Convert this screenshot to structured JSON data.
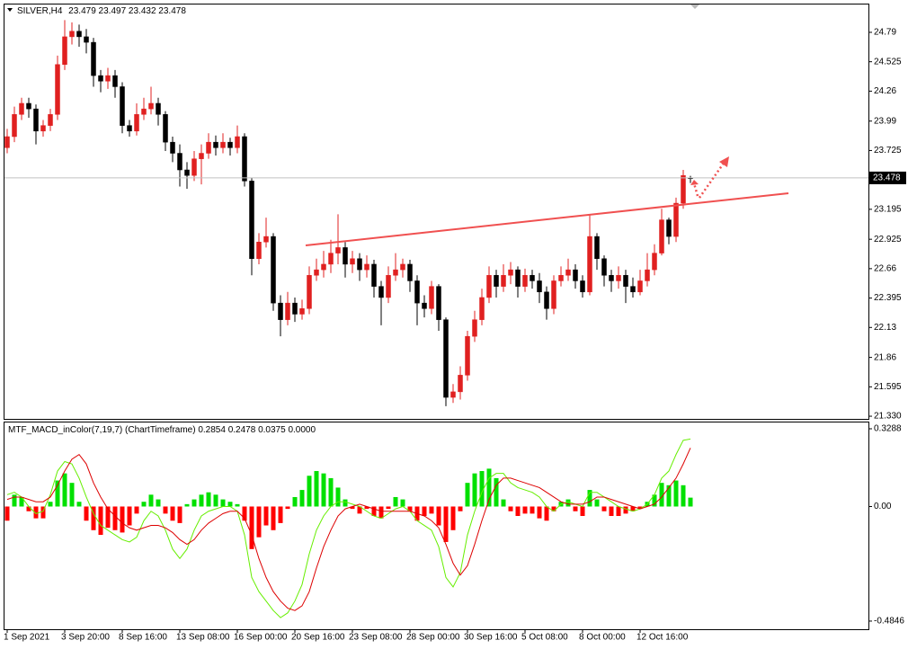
{
  "chart_data": [
    {
      "type": "candlestick",
      "title": "SILVER,H4",
      "categories": [
        "1 Sep 2021",
        null,
        null,
        null,
        null,
        null,
        null,
        null,
        "3 Sep 20:00",
        null,
        null,
        null,
        null,
        null,
        null,
        null,
        "8 Sep 16:00",
        null,
        null,
        null,
        null,
        null,
        null,
        null,
        "13 Sep 08:00",
        null,
        null,
        null,
        null,
        null,
        null,
        null,
        "16 Sep 00:00",
        null,
        null,
        null,
        null,
        null,
        null,
        null,
        "20 Sep 16:00",
        null,
        null,
        null,
        null,
        null,
        null,
        null,
        "23 Sep 08:00",
        null,
        null,
        null,
        null,
        null,
        null,
        null,
        "28 Sep 00:00",
        null,
        null,
        null,
        null,
        null,
        null,
        null,
        "30 Sep 16:00",
        null,
        null,
        null,
        null,
        null,
        null,
        null,
        "5 Oct 08:00",
        null,
        null,
        null,
        null,
        null,
        null,
        null,
        "8 Oct 00:00",
        null,
        null,
        null,
        null,
        null,
        null,
        null,
        "12 Oct 16:00",
        null,
        null,
        null,
        null,
        null,
        null,
        null
      ],
      "open": [
        23.75,
        23.85,
        24.05,
        24.15,
        24.1,
        23.9,
        23.95,
        24.05,
        24.5,
        24.75,
        24.8,
        24.75,
        24.7,
        24.4,
        24.35,
        24.4,
        24.3,
        23.95,
        23.9,
        24.05,
        24.1,
        24.15,
        24.05,
        23.8,
        23.7,
        23.55,
        23.5,
        23.65,
        23.7,
        23.8,
        23.75,
        23.8,
        23.75,
        23.85,
        23.45,
        22.75,
        22.9,
        22.95,
        22.35,
        22.2,
        22.35,
        22.25,
        22.3,
        22.6,
        22.65,
        22.7,
        22.8,
        22.85,
        22.7,
        22.75,
        22.65,
        22.7,
        22.5,
        22.4,
        22.6,
        22.65,
        22.7,
        22.55,
        22.35,
        22.3,
        22.5,
        22.2,
        21.5,
        21.55,
        21.7,
        22.05,
        22.2,
        22.4,
        22.6,
        22.5,
        22.6,
        22.65,
        22.5,
        22.6,
        22.55,
        22.45,
        22.3,
        22.55,
        22.6,
        22.65,
        22.55,
        22.45,
        22.95,
        22.75,
        22.6,
        22.55,
        22.6,
        22.5,
        22.45,
        22.55,
        22.65,
        22.8,
        23.1,
        22.95,
        23.25,
        23.479
      ],
      "high": [
        23.92,
        24.12,
        24.2,
        24.2,
        24.14,
        24.0,
        24.1,
        24.58,
        24.9,
        24.88,
        24.86,
        24.82,
        24.74,
        24.45,
        24.47,
        24.45,
        24.34,
        24.0,
        24.15,
        24.2,
        24.3,
        24.2,
        24.08,
        23.85,
        23.78,
        23.62,
        23.72,
        23.78,
        23.88,
        23.86,
        23.88,
        23.84,
        23.95,
        23.88,
        23.48,
        22.98,
        23.12,
        22.98,
        22.42,
        22.45,
        22.4,
        22.38,
        22.68,
        22.75,
        22.82,
        22.92,
        23.15,
        22.9,
        22.82,
        22.8,
        22.78,
        22.74,
        22.55,
        22.68,
        22.8,
        22.75,
        22.74,
        22.6,
        22.42,
        22.55,
        22.52,
        22.22,
        21.62,
        21.78,
        22.1,
        22.28,
        22.48,
        22.68,
        22.65,
        22.7,
        22.72,
        22.68,
        22.66,
        22.65,
        22.62,
        22.5,
        22.6,
        22.68,
        22.75,
        22.7,
        22.6,
        23.15,
        22.98,
        22.78,
        22.65,
        22.68,
        22.65,
        22.58,
        22.65,
        22.8,
        22.88,
        23.2,
        23.12,
        23.3,
        23.55,
        23.497
      ],
      "low": [
        23.7,
        23.8,
        24.0,
        24.02,
        23.78,
        23.85,
        23.9,
        24.0,
        24.45,
        24.68,
        24.66,
        24.6,
        24.3,
        24.25,
        24.28,
        24.2,
        23.88,
        23.85,
        23.86,
        24.0,
        24.05,
        23.95,
        23.72,
        23.62,
        23.4,
        23.38,
        23.45,
        23.42,
        23.65,
        23.68,
        23.7,
        23.68,
        23.7,
        23.4,
        22.6,
        22.7,
        22.85,
        22.28,
        22.05,
        22.15,
        22.18,
        22.2,
        22.25,
        22.55,
        22.58,
        22.62,
        22.7,
        22.58,
        22.62,
        22.55,
        22.58,
        22.4,
        22.15,
        22.35,
        22.55,
        22.58,
        22.45,
        22.15,
        22.22,
        22.25,
        22.1,
        21.42,
        21.45,
        21.48,
        21.65,
        22.0,
        22.15,
        22.35,
        22.4,
        22.45,
        22.52,
        22.4,
        22.45,
        22.48,
        22.35,
        22.2,
        22.25,
        22.5,
        22.55,
        22.48,
        22.4,
        22.42,
        22.65,
        22.5,
        22.45,
        22.48,
        22.35,
        22.4,
        22.42,
        22.5,
        22.6,
        22.78,
        22.88,
        22.9,
        23.2,
        23.432
      ],
      "close": [
        23.85,
        24.05,
        24.15,
        24.1,
        23.9,
        23.95,
        24.05,
        24.5,
        24.75,
        24.8,
        24.75,
        24.7,
        24.4,
        24.35,
        24.4,
        24.3,
        23.95,
        23.9,
        24.05,
        24.1,
        24.15,
        24.05,
        23.8,
        23.7,
        23.55,
        23.5,
        23.65,
        23.7,
        23.8,
        23.75,
        23.8,
        23.75,
        23.85,
        23.45,
        22.75,
        22.9,
        22.95,
        22.35,
        22.2,
        22.35,
        22.25,
        22.3,
        22.6,
        22.65,
        22.7,
        22.8,
        22.85,
        22.7,
        22.75,
        22.65,
        22.7,
        22.5,
        22.4,
        22.6,
        22.65,
        22.7,
        22.55,
        22.35,
        22.3,
        22.5,
        22.2,
        21.5,
        21.55,
        21.7,
        22.05,
        22.2,
        22.4,
        22.6,
        22.5,
        22.6,
        22.65,
        22.5,
        22.6,
        22.55,
        22.45,
        22.3,
        22.55,
        22.6,
        22.65,
        22.55,
        22.45,
        22.95,
        22.75,
        22.6,
        22.55,
        22.6,
        22.5,
        22.45,
        22.55,
        22.65,
        22.8,
        23.1,
        22.95,
        23.25,
        23.5,
        23.478
      ],
      "up_color": "#e02020",
      "down_color": "#000000",
      "ylim": [
        21.306,
        25.049
      ],
      "yticks": [
        {
          "value": 21.33,
          "label": "21.330"
        },
        21.595,
        21.86,
        22.13,
        22.395,
        22.66,
        22.925,
        23.195,
        23.725,
        23.99,
        24.26,
        24.525,
        24.79
      ]
    },
    {
      "type": "macd",
      "title": "MTF_MACD_inColor(7,19,7) (ChartTimeframe)",
      "readout": [
        "0.2854",
        "0.2478",
        "0.0375",
        "0.0000"
      ],
      "histogram": [
        -0.06,
        0.05,
        0.04,
        -0.02,
        -0.05,
        -0.05,
        0.02,
        0.11,
        0.14,
        0.1,
        0.02,
        -0.06,
        -0.1,
        -0.12,
        -0.09,
        -0.1,
        -0.11,
        -0.08,
        -0.03,
        0.02,
        0.05,
        0.03,
        -0.03,
        -0.06,
        -0.07,
        0.01,
        0.03,
        0.05,
        0.06,
        0.05,
        0.03,
        0.02,
        0.01,
        -0.06,
        -0.18,
        -0.13,
        -0.08,
        -0.1,
        -0.07,
        -0.01,
        0.04,
        0.07,
        0.13,
        0.15,
        0.14,
        0.12,
        0.08,
        0.03,
        -0.01,
        -0.03,
        -0.01,
        -0.04,
        -0.05,
        -0.01,
        0.04,
        0.03,
        -0.02,
        -0.06,
        -0.04,
        -0.03,
        -0.08,
        -0.15,
        -0.1,
        -0.02,
        0.1,
        0.14,
        0.15,
        0.16,
        0.12,
        0.03,
        -0.02,
        -0.04,
        -0.03,
        -0.03,
        -0.05,
        -0.06,
        -0.02,
        0.02,
        0.03,
        -0.02,
        -0.04,
        0.07,
        0.03,
        -0.02,
        -0.04,
        -0.04,
        -0.03,
        -0.02,
        -0.01,
        0.02,
        0.05,
        0.1,
        0.09,
        0.11,
        0.09,
        0.0375
      ],
      "up_color": "#00e000",
      "down_color": "#ff0000",
      "series": [
        {
          "color": "#66ee00",
          "values": [
            0.05,
            0.06,
            0.04,
            0,
            -0.03,
            -0.02,
            0.05,
            0.15,
            0.19,
            0.18,
            0.12,
            0.04,
            -0.03,
            -0.08,
            -0.1,
            -0.12,
            -0.14,
            -0.15,
            -0.13,
            -0.06,
            -0.02,
            -0.04,
            -0.1,
            -0.18,
            -0.22,
            -0.18,
            -0.1,
            -0.04,
            -0.02,
            -0.01,
            0,
            0,
            -0.02,
            -0.12,
            -0.3,
            -0.36,
            -0.4,
            -0.44,
            -0.47,
            -0.45,
            -0.4,
            -0.33,
            -0.2,
            -0.1,
            -0.04,
            0,
            0.02,
            0.02,
            0.01,
            0,
            -0.02,
            -0.04,
            -0.05,
            -0.03,
            -0.01,
            0,
            -0.02,
            -0.06,
            -0.08,
            -0.1,
            -0.17,
            -0.3,
            -0.34,
            -0.28,
            -0.12,
            -0.02,
            0.06,
            0.12,
            0.14,
            0.14,
            0.1,
            0.08,
            0.07,
            0.06,
            0.04,
            0,
            -0.02,
            0.01,
            0.02,
            0.01,
            0,
            0.06,
            0.06,
            0.04,
            0.02,
            0,
            -0.01,
            -0.02,
            -0.01,
            0.01,
            0.05,
            0.12,
            0.15,
            0.22,
            0.28,
            0.2854
          ]
        },
        {
          "color": "#dd0000",
          "values": [
            0.03,
            0.04,
            0.04,
            0.03,
            0.02,
            0.02,
            0.04,
            0.09,
            0.15,
            0.2,
            0.22,
            0.18,
            0.1,
            0.04,
            -0.01,
            -0.04,
            -0.07,
            -0.09,
            -0.1,
            -0.09,
            -0.08,
            -0.08,
            -0.09,
            -0.11,
            -0.14,
            -0.16,
            -0.14,
            -0.1,
            -0.07,
            -0.05,
            -0.03,
            -0.02,
            -0.02,
            -0.05,
            -0.12,
            -0.22,
            -0.3,
            -0.36,
            -0.4,
            -0.43,
            -0.44,
            -0.42,
            -0.36,
            -0.26,
            -0.17,
            -0.1,
            -0.04,
            -0.01,
            0,
            0.01,
            0,
            -0.01,
            -0.02,
            -0.02,
            -0.02,
            -0.02,
            -0.02,
            -0.03,
            -0.04,
            -0.06,
            -0.09,
            -0.16,
            -0.24,
            -0.29,
            -0.25,
            -0.16,
            -0.06,
            0.03,
            0.09,
            0.12,
            0.12,
            0.11,
            0.1,
            0.09,
            0.08,
            0.06,
            0.04,
            0.02,
            0.01,
            0.01,
            0.01,
            0.02,
            0.04,
            0.04,
            0.03,
            0.02,
            0.01,
            0,
            -0.01,
            0,
            0.01,
            0.04,
            0.08,
            0.12,
            0.18,
            0.2478
          ]
        }
      ],
      "ylim": [
        -0.519,
        0.3554
      ],
      "yticks": [
        0.3288,
        {
          "value": 0,
          "label": "0.00"
        },
        -0.4846
      ]
    }
  ]
}
